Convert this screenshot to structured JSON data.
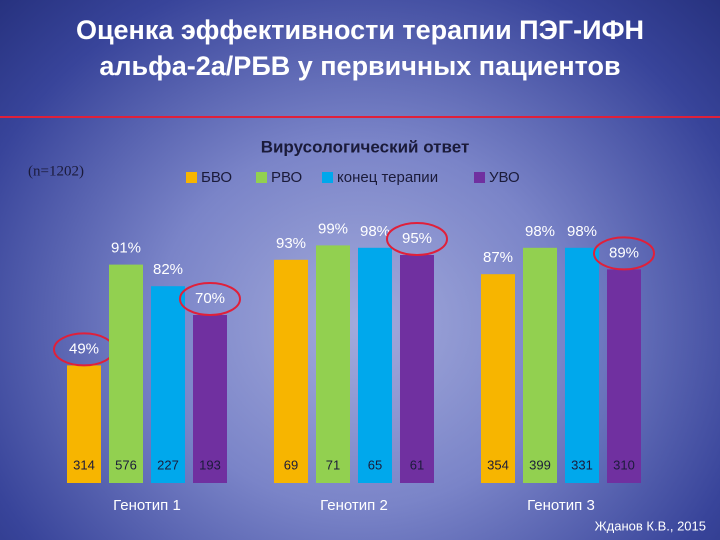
{
  "header": {
    "title": "Оценка эффективности терапии ПЭГ-ИФН альфа-2а/РБВ у первичных пациентов"
  },
  "chart_data": {
    "type": "bar",
    "title": "Вирусологический ответ",
    "subtitle": "(n=1202)",
    "categories": [
      "Генотип 1",
      "Генотип 2",
      "Генотип 3"
    ],
    "series": [
      {
        "name": "БВО",
        "color": "#f7b500",
        "values": [
          49,
          93,
          87
        ],
        "value_labels": [
          "49%",
          "93%",
          "87%"
        ],
        "counts": [
          314,
          69,
          354
        ]
      },
      {
        "name": "РВО",
        "color": "#92d050",
        "values": [
          91,
          99,
          98
        ],
        "value_labels": [
          "91%",
          "99%",
          "98%"
        ],
        "counts": [
          576,
          71,
          399
        ]
      },
      {
        "name": "конец терапии",
        "color": "#00a8ec",
        "values": [
          82,
          98,
          98
        ],
        "value_labels": [
          "82%",
          "98%",
          "98%"
        ],
        "counts": [
          227,
          65,
          331
        ]
      },
      {
        "name": "УВО",
        "color": "#7030a0",
        "values": [
          70,
          95,
          89
        ],
        "value_labels": [
          "70%",
          "95%",
          "89%"
        ],
        "counts": [
          193,
          61,
          310
        ]
      }
    ]
  },
  "footer": {
    "source": "Жданов К.В., 2015"
  }
}
